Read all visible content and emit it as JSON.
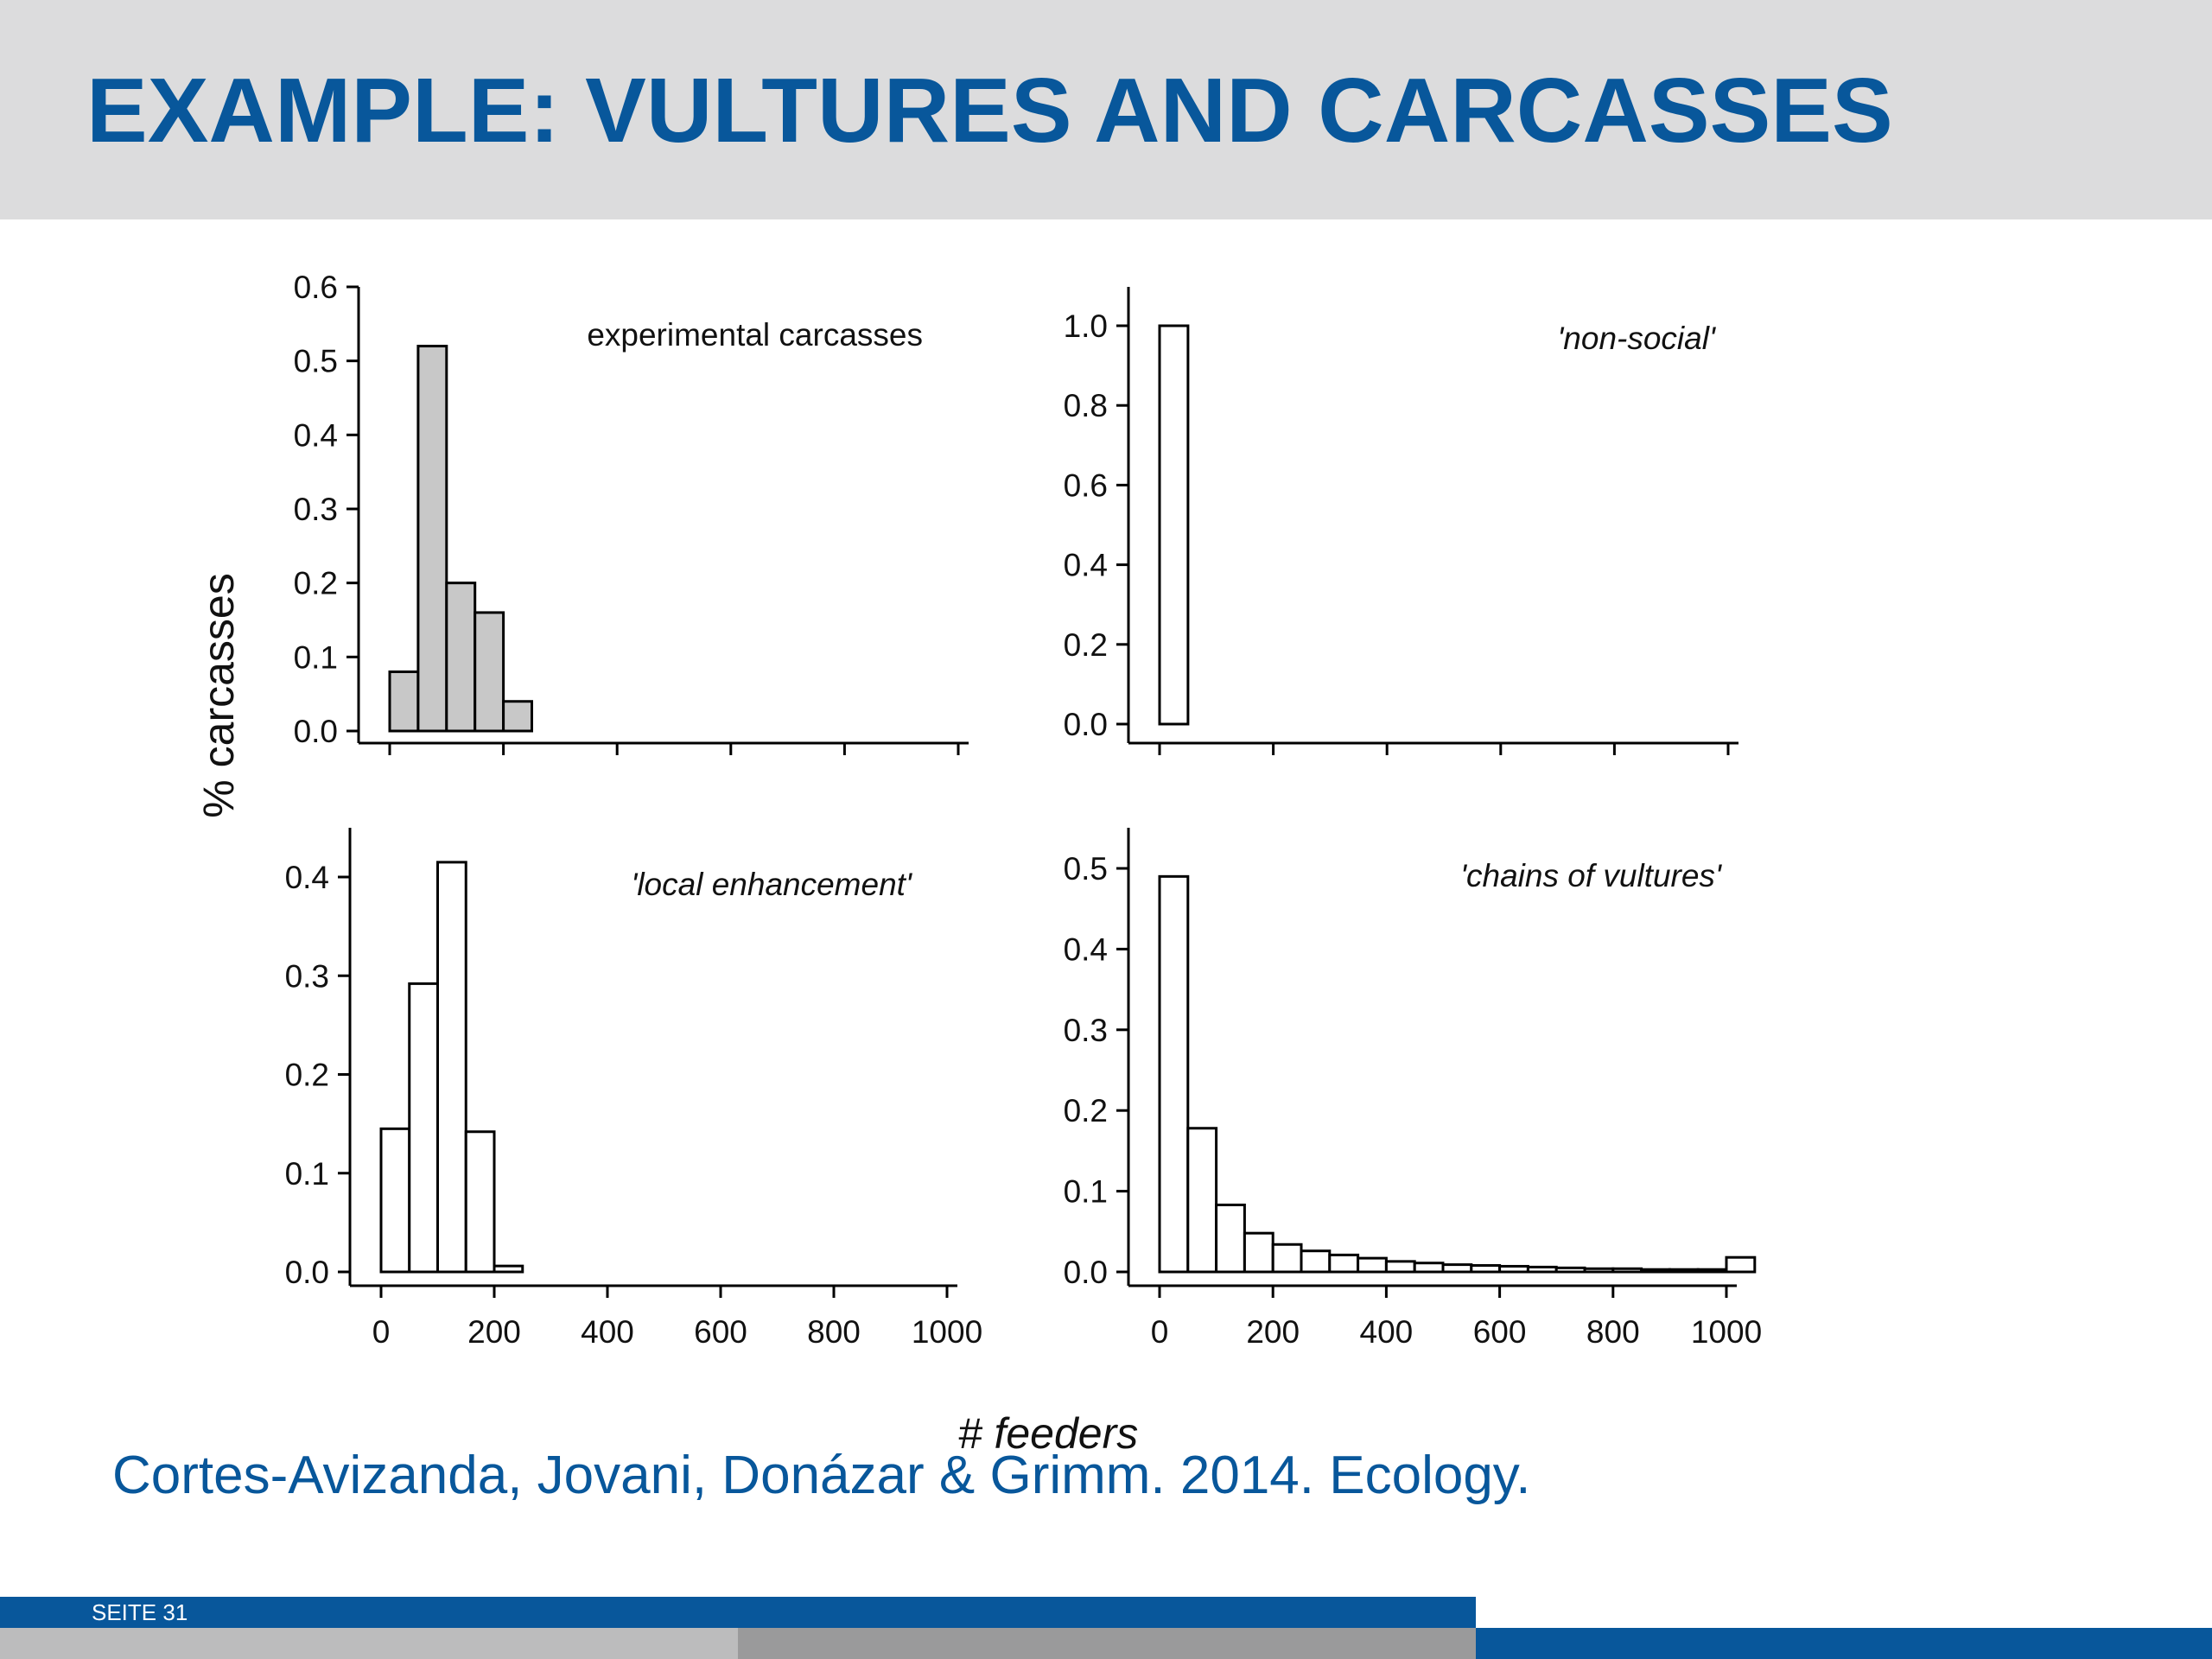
{
  "slide": {
    "title": "EXAMPLE: VULTURES AND CARCASSES",
    "citation": "Cortes-Avizanda, Jovani, Donázar & Grimm. 2014. Ecology.",
    "page_label": "SEITE 31"
  },
  "colors": {
    "brand_blue": "#08579b",
    "header_gray": "#dcdcdd",
    "gray_bar_fill": "#c8c8c8",
    "white_bar_fill": "#ffffff"
  },
  "figure": {
    "ylabel": "% carcasses",
    "xlabel": "# feeders"
  },
  "chart_data": [
    {
      "id": "experimental",
      "type": "bar",
      "title": "experimental carcasses",
      "title_italic": false,
      "fill": "gray",
      "bin_width": 50,
      "bin_start": 0,
      "values": [
        0.08,
        0.52,
        0.2,
        0.16,
        0.04
      ],
      "xlim": [
        0,
        1000
      ],
      "ylim": [
        0,
        0.6
      ],
      "yticks": [
        "0.0",
        "0.1",
        "0.2",
        "0.3",
        "0.4",
        "0.5",
        "0.6"
      ],
      "xticks_labeled": false
    },
    {
      "id": "non-social",
      "type": "bar",
      "title": "'non-social'",
      "title_italic": true,
      "fill": "white",
      "bin_width": 50,
      "bin_start": 0,
      "values": [
        1.0,
        0.0
      ],
      "xlim": [
        0,
        1000
      ],
      "ylim": [
        0,
        1.0
      ],
      "yticks": [
        "0.0",
        "0.2",
        "0.4",
        "0.6",
        "0.8",
        "1.0"
      ],
      "xticks_labeled": false
    },
    {
      "id": "local-enhancement",
      "type": "bar",
      "title": "'local enhancement'",
      "title_italic": true,
      "fill": "white",
      "bin_width": 50,
      "bin_start": 0,
      "values": [
        0.145,
        0.292,
        0.415,
        0.142,
        0.006
      ],
      "xlim": [
        0,
        1000
      ],
      "ylim": [
        0,
        0.4
      ],
      "yticks": [
        "0.0",
        "0.1",
        "0.2",
        "0.3",
        "0.4"
      ],
      "xticks_labeled": true,
      "xticks": [
        "0",
        "200",
        "400",
        "600",
        "800",
        "1000"
      ]
    },
    {
      "id": "chains-of-vultures",
      "type": "bar",
      "title": "'chains of vultures'",
      "title_italic": true,
      "fill": "white",
      "bin_width": 50,
      "bin_start": 0,
      "values": [
        0.49,
        0.178,
        0.083,
        0.048,
        0.034,
        0.026,
        0.021,
        0.017,
        0.013,
        0.011,
        0.009,
        0.008,
        0.007,
        0.006,
        0.005,
        0.004,
        0.004,
        0.003,
        0.003,
        0.003,
        0.018
      ],
      "xlim": [
        0,
        1000
      ],
      "ylim": [
        0,
        0.5
      ],
      "yticks": [
        "0.0",
        "0.1",
        "0.2",
        "0.3",
        "0.4",
        "0.5"
      ],
      "xticks_labeled": true,
      "xticks": [
        "0",
        "200",
        "400",
        "600",
        "800",
        "1000"
      ]
    }
  ]
}
